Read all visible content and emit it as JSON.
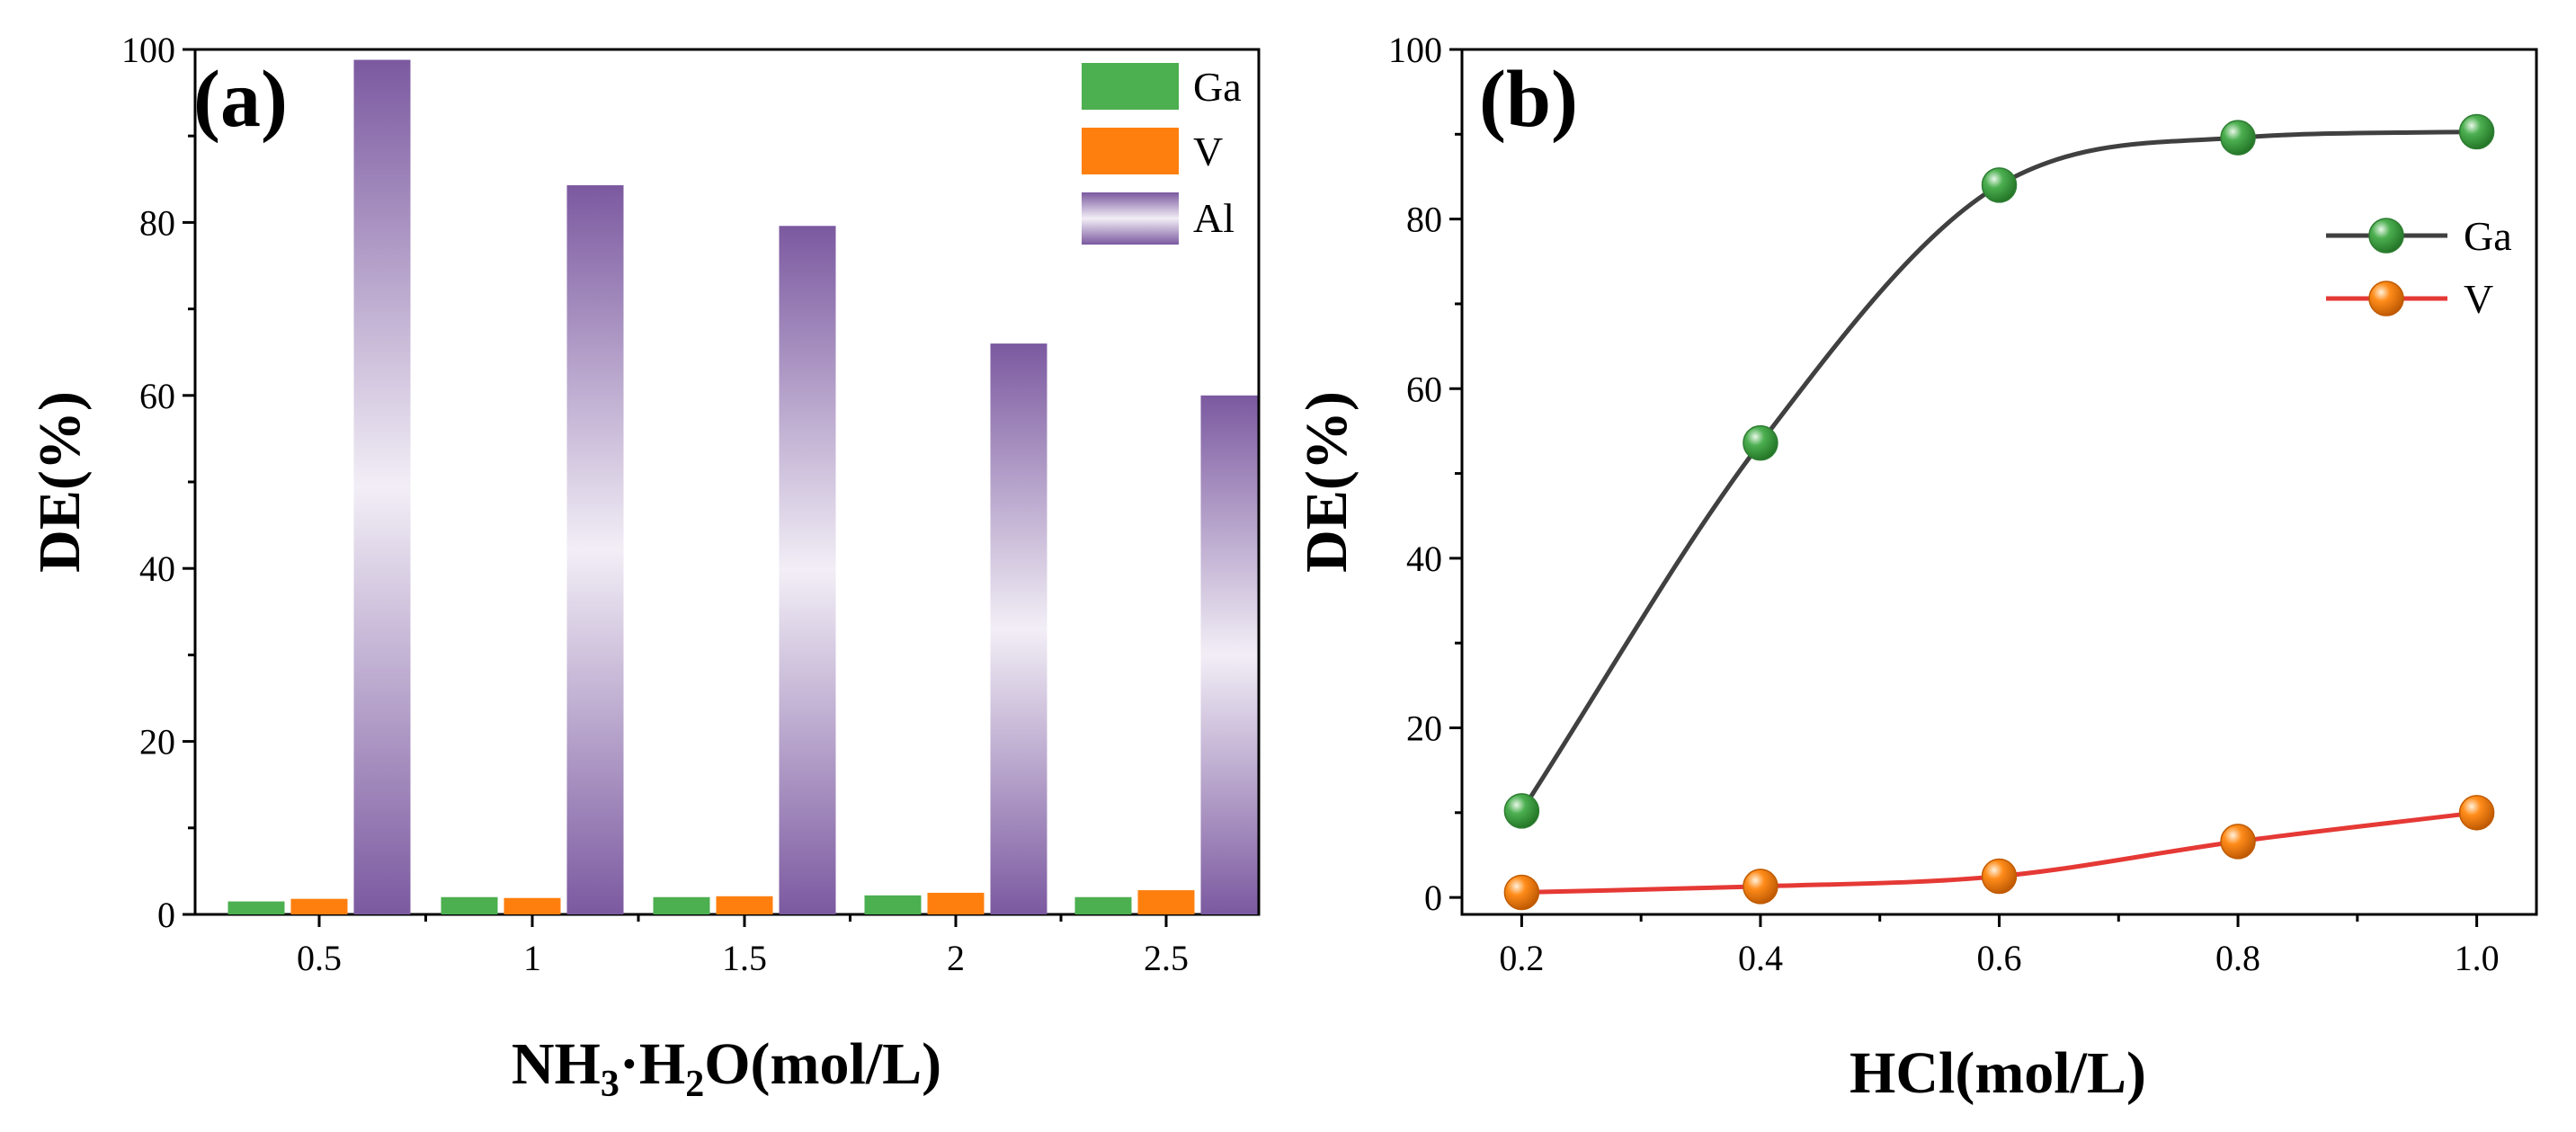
{
  "chart_data": [
    {
      "panel": "(a)",
      "type": "bar",
      "xlabel": {
        "main": "NH",
        "sub1": "3",
        "mid": "·H",
        "sub2": "2",
        "tail": "O(mol/L)"
      },
      "ylabel": "DE(%)",
      "ylim": [
        0,
        100
      ],
      "yticks": [
        "0",
        "20",
        "40",
        "60",
        "80",
        "100"
      ],
      "categories": [
        "0.5",
        "1",
        "1.5",
        "2",
        "2.5"
      ],
      "series": [
        {
          "name": "Ga",
          "values": [
            1.5,
            2.0,
            2.0,
            2.2,
            2.0
          ],
          "color": "#4caf50"
        },
        {
          "name": "V",
          "values": [
            1.8,
            1.9,
            2.1,
            2.5,
            2.8
          ],
          "color": "#ff7f0e"
        },
        {
          "name": "Al",
          "values": [
            98.8,
            84.3,
            79.6,
            66.0,
            60.0
          ],
          "color": "#7b59a0",
          "color_light": "#f2eef6"
        }
      ],
      "legend_position": "top-right"
    },
    {
      "panel": "(b)",
      "type": "line",
      "xlabel": "HCl(mol/L)",
      "ylabel": "DE(%)",
      "xlim": [
        0.15,
        1.05
      ],
      "ylim": [
        -2,
        100
      ],
      "xticks": [
        "0.2",
        "0.4",
        "0.6",
        "0.8",
        "1.0"
      ],
      "yticks": [
        "0",
        "20",
        "40",
        "60",
        "80",
        "100"
      ],
      "x": [
        0.2,
        0.4,
        0.6,
        0.8,
        1.0
      ],
      "series": [
        {
          "name": "Ga",
          "values": [
            10.2,
            53.6,
            84.0,
            89.6,
            90.3
          ],
          "line_color": "#404040",
          "marker_color": "#4caf50"
        },
        {
          "name": "V",
          "values": [
            0.6,
            1.3,
            2.5,
            6.6,
            10.0
          ],
          "line_color": "#e53935",
          "marker_color": "#ff8c1a"
        }
      ],
      "legend_position": "right"
    }
  ]
}
